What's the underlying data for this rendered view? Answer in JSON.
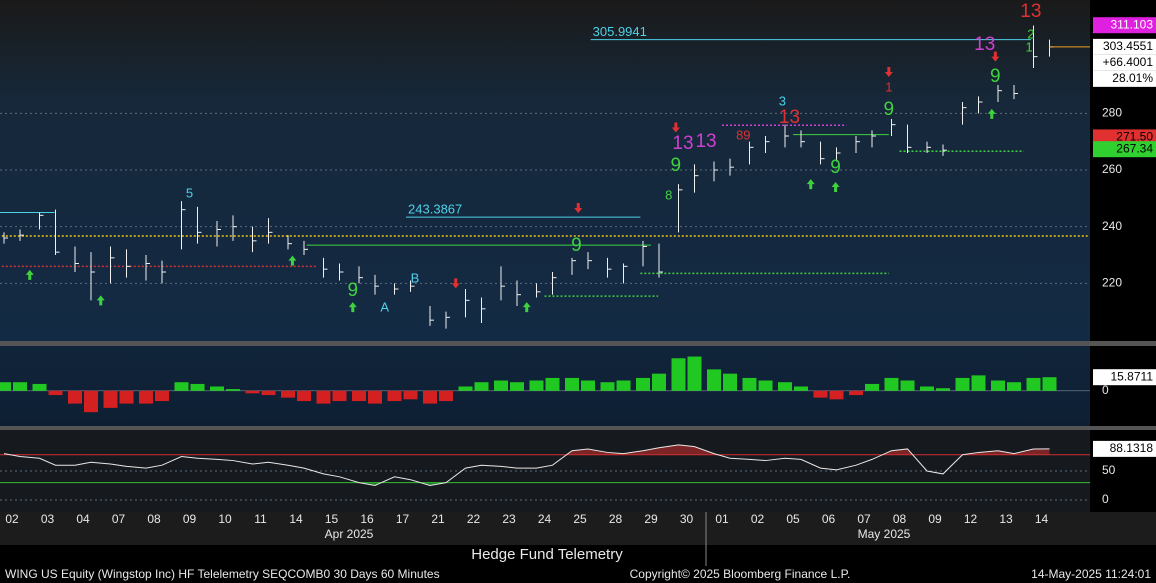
{
  "chart_data": [
    {
      "type": "ohlc",
      "categories": [
        "02",
        "03",
        "04",
        "07",
        "08",
        "09",
        "10",
        "11",
        "14",
        "15",
        "16",
        "17",
        "21",
        "22",
        "23",
        "24",
        "25",
        "28",
        "29",
        "30",
        "01",
        "02",
        "05",
        "06",
        "07",
        "08",
        "09",
        "12",
        "13",
        "14"
      ],
      "month_labels": [
        "Apr 2025",
        "May 2025"
      ],
      "high": [
        238,
        239,
        245,
        246,
        233,
        231,
        233,
        232,
        230,
        228,
        249,
        247,
        242,
        244,
        240,
        243,
        237,
        235,
        229,
        227,
        226,
        223,
        220,
        221,
        212,
        210,
        218,
        215,
        226,
        221,
        220,
        224,
        229,
        231,
        229,
        227,
        235,
        234,
        255,
        262,
        263,
        264,
        270,
        272,
        276,
        274,
        270,
        268,
        272,
        274,
        278,
        276,
        270,
        269,
        284,
        286,
        290,
        290,
        311,
        306
      ],
      "low": [
        234,
        235,
        239,
        230,
        224,
        214,
        220,
        222,
        221,
        220,
        232,
        234,
        233,
        235,
        231,
        234,
        232,
        230,
        222,
        221,
        220,
        216,
        216,
        217,
        205,
        204,
        208,
        206,
        214,
        212,
        215,
        216,
        223,
        225,
        222,
        220,
        226,
        222,
        238,
        252,
        256,
        258,
        262,
        266,
        268,
        268,
        262,
        263,
        266,
        268,
        272,
        266,
        266,
        265,
        276,
        280,
        284,
        285,
        296,
        300
      ],
      "close": [
        236,
        237,
        244,
        231,
        227,
        224,
        229,
        226,
        227,
        224,
        246,
        238,
        239,
        240,
        235,
        238,
        234,
        232,
        225,
        224,
        222,
        219,
        218,
        219,
        207,
        208,
        214,
        211,
        219,
        216,
        217,
        222,
        228,
        228,
        225,
        226,
        233,
        224,
        253,
        258,
        260,
        261,
        268,
        270,
        272,
        270,
        264,
        266,
        270,
        272,
        276,
        268,
        268,
        267,
        282,
        284,
        288,
        287,
        300,
        303.4551
      ],
      "color": "#f0f0f0",
      "ylim": [
        200,
        320
      ],
      "yticks": [
        220,
        240,
        260,
        280
      ],
      "grid": true,
      "levels": [
        {
          "value": 305.9941,
          "from": 16.3,
          "to": 28.7,
          "color": "#4fd1e8",
          "labeled": true
        },
        {
          "value": 243.3867,
          "from": 11.1,
          "to": 17.7,
          "color": "#4fd1e8",
          "labeled": true
        },
        {
          "value": 245,
          "from": -0.4,
          "to": 1.2,
          "color": "#4fd1e8"
        },
        {
          "value": 236.7,
          "from": -0.4,
          "to": 30.3,
          "color": "#f0c419",
          "dash": true
        },
        {
          "value": 233.5,
          "from": 8.3,
          "to": 18,
          "color": "#3fd23f"
        },
        {
          "value": 226,
          "from": -0.4,
          "to": 8.6,
          "color": "#d03030",
          "dash": true
        },
        {
          "value": 223.5,
          "from": 17.7,
          "to": 24.7,
          "color": "#3fd23f",
          "dash": true
        },
        {
          "value": 215.5,
          "from": 15,
          "to": 18.2,
          "color": "#3fd23f",
          "dash": true
        },
        {
          "value": 275.8,
          "from": 20,
          "to": 23.5,
          "color": "#d040d0",
          "dash": true
        },
        {
          "value": 272.5,
          "from": 22,
          "to": 24.7,
          "color": "#3fd23f"
        },
        {
          "value": 266.6,
          "from": 25,
          "to": 28.5,
          "color": "#3fd23f",
          "dash": true
        }
      ],
      "td_counts": [
        {
          "label": "5",
          "x": 5.0,
          "y": 251.5,
          "color": "#4fd1e8"
        },
        {
          "label": "B",
          "x": 11.35,
          "y": 221.5,
          "color": "#4fd1e8"
        },
        {
          "label": "A",
          "x": 10.5,
          "y": 211.3,
          "color": "#4fd1e8"
        },
        {
          "label": "9",
          "x": 9.6,
          "y": 217.3,
          "color": "#3fd23f"
        },
        {
          "label": "9",
          "x": 15.9,
          "y": 233.2,
          "color": "#3fd23f"
        },
        {
          "label": "13",
          "x": 18.9,
          "y": 269.2,
          "color": "#d040d0"
        },
        {
          "label": "13",
          "x": 19.55,
          "y": 269.9,
          "color": "#d040d0"
        },
        {
          "label": "9",
          "x": 18.7,
          "y": 261.4,
          "color": "#3fd23f"
        },
        {
          "label": "8",
          "x": 18.5,
          "y": 250.8,
          "color": "#3fd23f"
        },
        {
          "label": "3",
          "x": 21.7,
          "y": 284,
          "color": "#4fd1e8"
        },
        {
          "label": "13",
          "x": 21.9,
          "y": 278.4,
          "color": "#e03030"
        },
        {
          "label": "89",
          "x": 20.6,
          "y": 272,
          "color": "#e03030"
        },
        {
          "label": "9",
          "x": 23.2,
          "y": 260.7,
          "color": "#3fd23f"
        },
        {
          "label": "9",
          "x": 24.7,
          "y": 281.2,
          "color": "#3fd23f"
        },
        {
          "label": "1",
          "x": 24.7,
          "y": 289,
          "color": "#e03030"
        },
        {
          "label": "13",
          "x": 27.4,
          "y": 304.1,
          "color": "#d040d0"
        },
        {
          "label": "9",
          "x": 27.7,
          "y": 292.8,
          "color": "#3fd23f"
        },
        {
          "label": "13",
          "x": 28.7,
          "y": 315.8,
          "color": "#e03030"
        },
        {
          "label": "2",
          "x": 28.7,
          "y": 307.7,
          "color": "#3fd23f"
        },
        {
          "label": "1",
          "x": 28.65,
          "y": 303,
          "color": "#3fd23f"
        }
      ],
      "arrows": [
        {
          "dir": "up",
          "x": 0.5,
          "y": 223
        },
        {
          "dir": "up",
          "x": 2.5,
          "y": 214
        },
        {
          "dir": "up",
          "x": 7.9,
          "y": 228
        },
        {
          "dir": "up",
          "x": 9.6,
          "y": 211.6
        },
        {
          "dir": "down",
          "x": 12.5,
          "y": 220
        },
        {
          "dir": "up",
          "x": 14.5,
          "y": 211.6
        },
        {
          "dir": "down",
          "x": 15.95,
          "y": 246.6
        },
        {
          "dir": "down",
          "x": 18.7,
          "y": 275
        },
        {
          "dir": "up",
          "x": 22.5,
          "y": 255
        },
        {
          "dir": "up",
          "x": 23.2,
          "y": 254
        },
        {
          "dir": "down",
          "x": 24.7,
          "y": 294.6
        },
        {
          "dir": "up",
          "x": 27.6,
          "y": 279.8
        },
        {
          "dir": "down",
          "x": 27.7,
          "y": 300
        }
      ],
      "last_labels": [
        {
          "value": 311.103,
          "label": "311.103",
          "color": "#e020e0",
          "text_color": "#ffffff"
        },
        {
          "value": 303.4551,
          "label": "303.4551",
          "color": "#ffffff",
          "text_color": "#000000"
        },
        {
          "value": 271.5,
          "label": "271.50",
          "color": "#e03030",
          "text_color": "#000000"
        },
        {
          "value": 267.34,
          "label": "267.34",
          "color": "#30d030",
          "text_color": "#000000"
        }
      ],
      "change_labels": [
        "+66.4001",
        "28.01%"
      ]
    },
    {
      "type": "histogram_panel",
      "values": [
        10,
        10,
        8,
        -5,
        -15,
        -25,
        -20,
        -15,
        -15,
        -12,
        10,
        8,
        5,
        2,
        -3,
        -5,
        -8,
        -12,
        -15,
        -12,
        -12,
        -15,
        -12,
        -10,
        -15,
        -12,
        5,
        10,
        12,
        10,
        12,
        15,
        15,
        12,
        10,
        12,
        15,
        20,
        38,
        40,
        25,
        20,
        15,
        12,
        10,
        5,
        -8,
        -10,
        -5,
        8,
        15,
        12,
        5,
        3,
        15,
        18,
        12,
        10,
        15,
        15.8711
      ],
      "colors": {
        "positive": "#22c822",
        "negative": "#d42020"
      },
      "ylim": [
        -40,
        50
      ],
      "yticks": [
        0
      ],
      "last_label": 15.8711
    },
    {
      "type": "line_panel",
      "values": [
        80,
        75,
        72,
        60,
        60,
        65,
        62,
        58,
        55,
        60,
        75,
        72,
        70,
        68,
        62,
        65,
        60,
        55,
        45,
        40,
        30,
        25,
        40,
        35,
        25,
        30,
        55,
        60,
        58,
        55,
        55,
        60,
        85,
        88,
        82,
        80,
        85,
        90,
        95,
        92,
        80,
        72,
        70,
        68,
        72,
        70,
        55,
        52,
        60,
        70,
        85,
        88,
        50,
        45,
        78,
        82,
        85,
        80,
        88,
        88.1318
      ],
      "color": "#e8e8e8",
      "thresholds": [
        {
          "value": 78,
          "color": "#d03030"
        },
        {
          "value": 30,
          "color": "#30c030"
        }
      ],
      "ylim": [
        -20,
        120
      ],
      "yticks": [
        0,
        50
      ],
      "last_label": 88.1318
    }
  ],
  "footer": {
    "title": "Hedge Fund Telemetry",
    "security": "WING US Equity (Wingstop Inc) HF Telelemetry SEQCOMB0 30 Days 60 Minutes",
    "copyright": "Copyright© 2025 Bloomberg Finance L.P.",
    "timestamp": "14-May-2025 11:24:01"
  }
}
